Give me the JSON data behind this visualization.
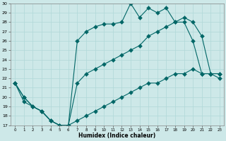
{
  "xlabel": "Humidex (Indice chaleur)",
  "bg_color": "#cde8e8",
  "line_color": "#006666",
  "line1_x": [
    0,
    1,
    2,
    3,
    4,
    5,
    6,
    7,
    8,
    9,
    10,
    11,
    12,
    13,
    14,
    15,
    16,
    17,
    18,
    19,
    20,
    21,
    22,
    23
  ],
  "line1_y": [
    21.5,
    20.0,
    19.0,
    18.5,
    17.5,
    17.0,
    17.0,
    26.0,
    27.0,
    27.5,
    27.8,
    27.8,
    28.0,
    30.0,
    28.5,
    29.5,
    29.0,
    29.5,
    28.0,
    28.0,
    26.0,
    22.5,
    22.5,
    22.5
  ],
  "line2_x": [
    0,
    1,
    2,
    3,
    4,
    5,
    6,
    7,
    8,
    9,
    10,
    11,
    12,
    13,
    14,
    15,
    16,
    17,
    18,
    19,
    20,
    21,
    22,
    23
  ],
  "line2_y": [
    21.5,
    20.0,
    19.0,
    18.5,
    17.5,
    17.0,
    17.0,
    21.5,
    22.5,
    23.0,
    23.5,
    24.0,
    24.5,
    25.0,
    25.5,
    26.5,
    27.0,
    27.5,
    28.0,
    28.5,
    28.0,
    26.5,
    22.5,
    22.0
  ],
  "line3_x": [
    0,
    1,
    2,
    3,
    4,
    5,
    6,
    7,
    8,
    9,
    10,
    11,
    12,
    13,
    14,
    15,
    16,
    17,
    18,
    19,
    20,
    21,
    22,
    23
  ],
  "line3_y": [
    21.5,
    19.5,
    19.0,
    18.5,
    17.5,
    17.0,
    17.0,
    17.5,
    18.0,
    18.5,
    19.0,
    19.5,
    20.0,
    20.5,
    21.0,
    21.5,
    21.5,
    22.0,
    22.5,
    22.5,
    23.0,
    22.5,
    22.5,
    22.5
  ],
  "ylim": [
    17,
    30
  ],
  "xlim": [
    -0.5,
    23.5
  ],
  "yticks": [
    17,
    18,
    19,
    20,
    21,
    22,
    23,
    24,
    25,
    26,
    27,
    28,
    29,
    30
  ],
  "xticks": [
    0,
    1,
    2,
    3,
    4,
    5,
    6,
    7,
    8,
    9,
    10,
    11,
    12,
    13,
    14,
    15,
    16,
    17,
    18,
    19,
    20,
    21,
    22,
    23
  ],
  "xtick_labels": [
    "0",
    "1",
    "2",
    "3",
    "4",
    "5",
    "6",
    "7",
    "8",
    "9",
    "10",
    "11",
    "12",
    "13",
    "14",
    "15",
    "16",
    "17",
    "18",
    "19",
    "20",
    "21",
    "22",
    "23"
  ]
}
